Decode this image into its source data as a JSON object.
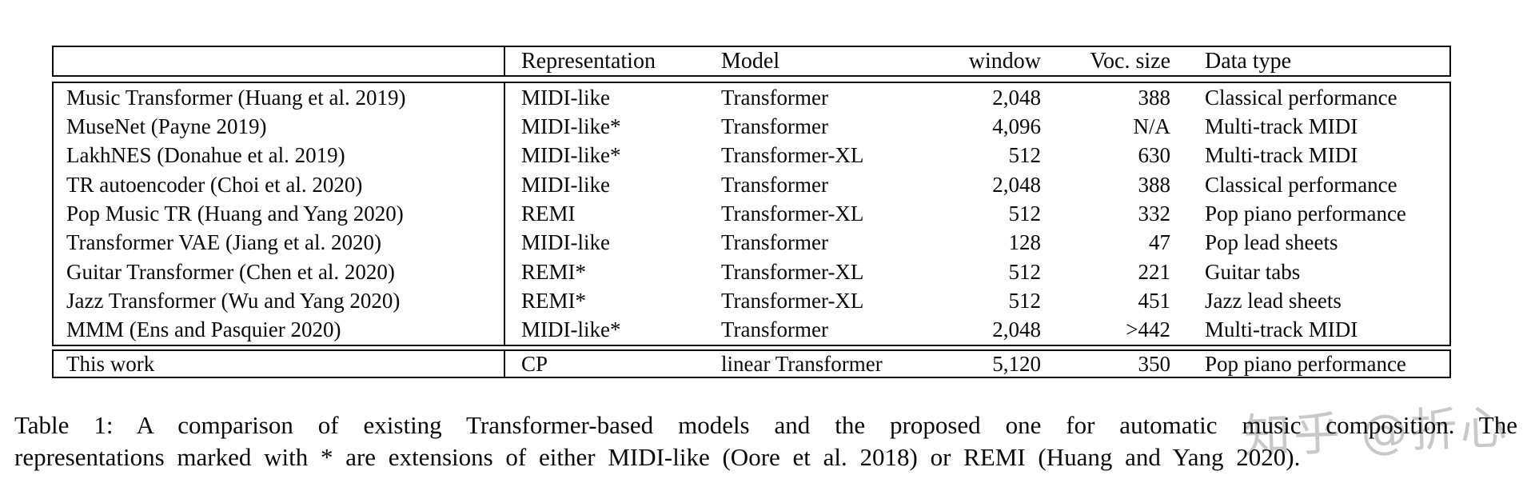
{
  "table": {
    "columns": [
      "",
      "Representation",
      "Model",
      "window",
      "Voc. size",
      "Data type"
    ],
    "rows": [
      {
        "name": "Music Transformer (Huang et al. 2019)",
        "representation": "MIDI-like",
        "model": "Transformer",
        "window": "2,048",
        "voc_size": "388",
        "data_type": "Classical performance"
      },
      {
        "name": "MuseNet (Payne 2019)",
        "representation": "MIDI-like*",
        "model": "Transformer",
        "window": "4,096",
        "voc_size": "N/A",
        "data_type": "Multi-track MIDI"
      },
      {
        "name": "LakhNES (Donahue et al. 2019)",
        "representation": "MIDI-like*",
        "model": "Transformer-XL",
        "window": "512",
        "voc_size": "630",
        "data_type": "Multi-track MIDI"
      },
      {
        "name": "TR autoencoder (Choi et al. 2020)",
        "representation": "MIDI-like",
        "model": "Transformer",
        "window": "2,048",
        "voc_size": "388",
        "data_type": "Classical performance"
      },
      {
        "name": "Pop Music TR (Huang and Yang 2020)",
        "representation": "REMI",
        "model": "Transformer-XL",
        "window": "512",
        "voc_size": "332",
        "data_type": "Pop piano performance"
      },
      {
        "name": "Transformer VAE (Jiang et al. 2020)",
        "representation": "MIDI-like",
        "model": "Transformer",
        "window": "128",
        "voc_size": "47",
        "data_type": "Pop lead sheets"
      },
      {
        "name": "Guitar Transformer (Chen et al. 2020)",
        "representation": "REMI*",
        "model": "Transformer-XL",
        "window": "512",
        "voc_size": "221",
        "data_type": "Guitar tabs"
      },
      {
        "name": "Jazz Transformer (Wu and Yang 2020)",
        "representation": "REMI*",
        "model": "Transformer-XL",
        "window": "512",
        "voc_size": "451",
        "data_type": "Jazz lead sheets"
      },
      {
        "name": "MMM (Ens and Pasquier 2020)",
        "representation": "MIDI-like*",
        "model": "Transformer",
        "window": "2,048",
        "voc_size": ">442",
        "data_type": "Multi-track MIDI"
      }
    ],
    "final_row": {
      "name": "This work",
      "representation": "CP",
      "model": "linear Transformer",
      "window": "5,120",
      "voc_size": "350",
      "data_type": "Pop piano performance"
    }
  },
  "caption": {
    "line1": "Table 1: A comparison of existing Transformer-based models and the proposed one for automatic music composition. The",
    "line2": "representations marked with * are extensions of either MIDI-like (Oore et al. 2018) or REMI (Huang and Yang 2020)."
  },
  "watermark": {
    "text": "知乎 @折心"
  }
}
